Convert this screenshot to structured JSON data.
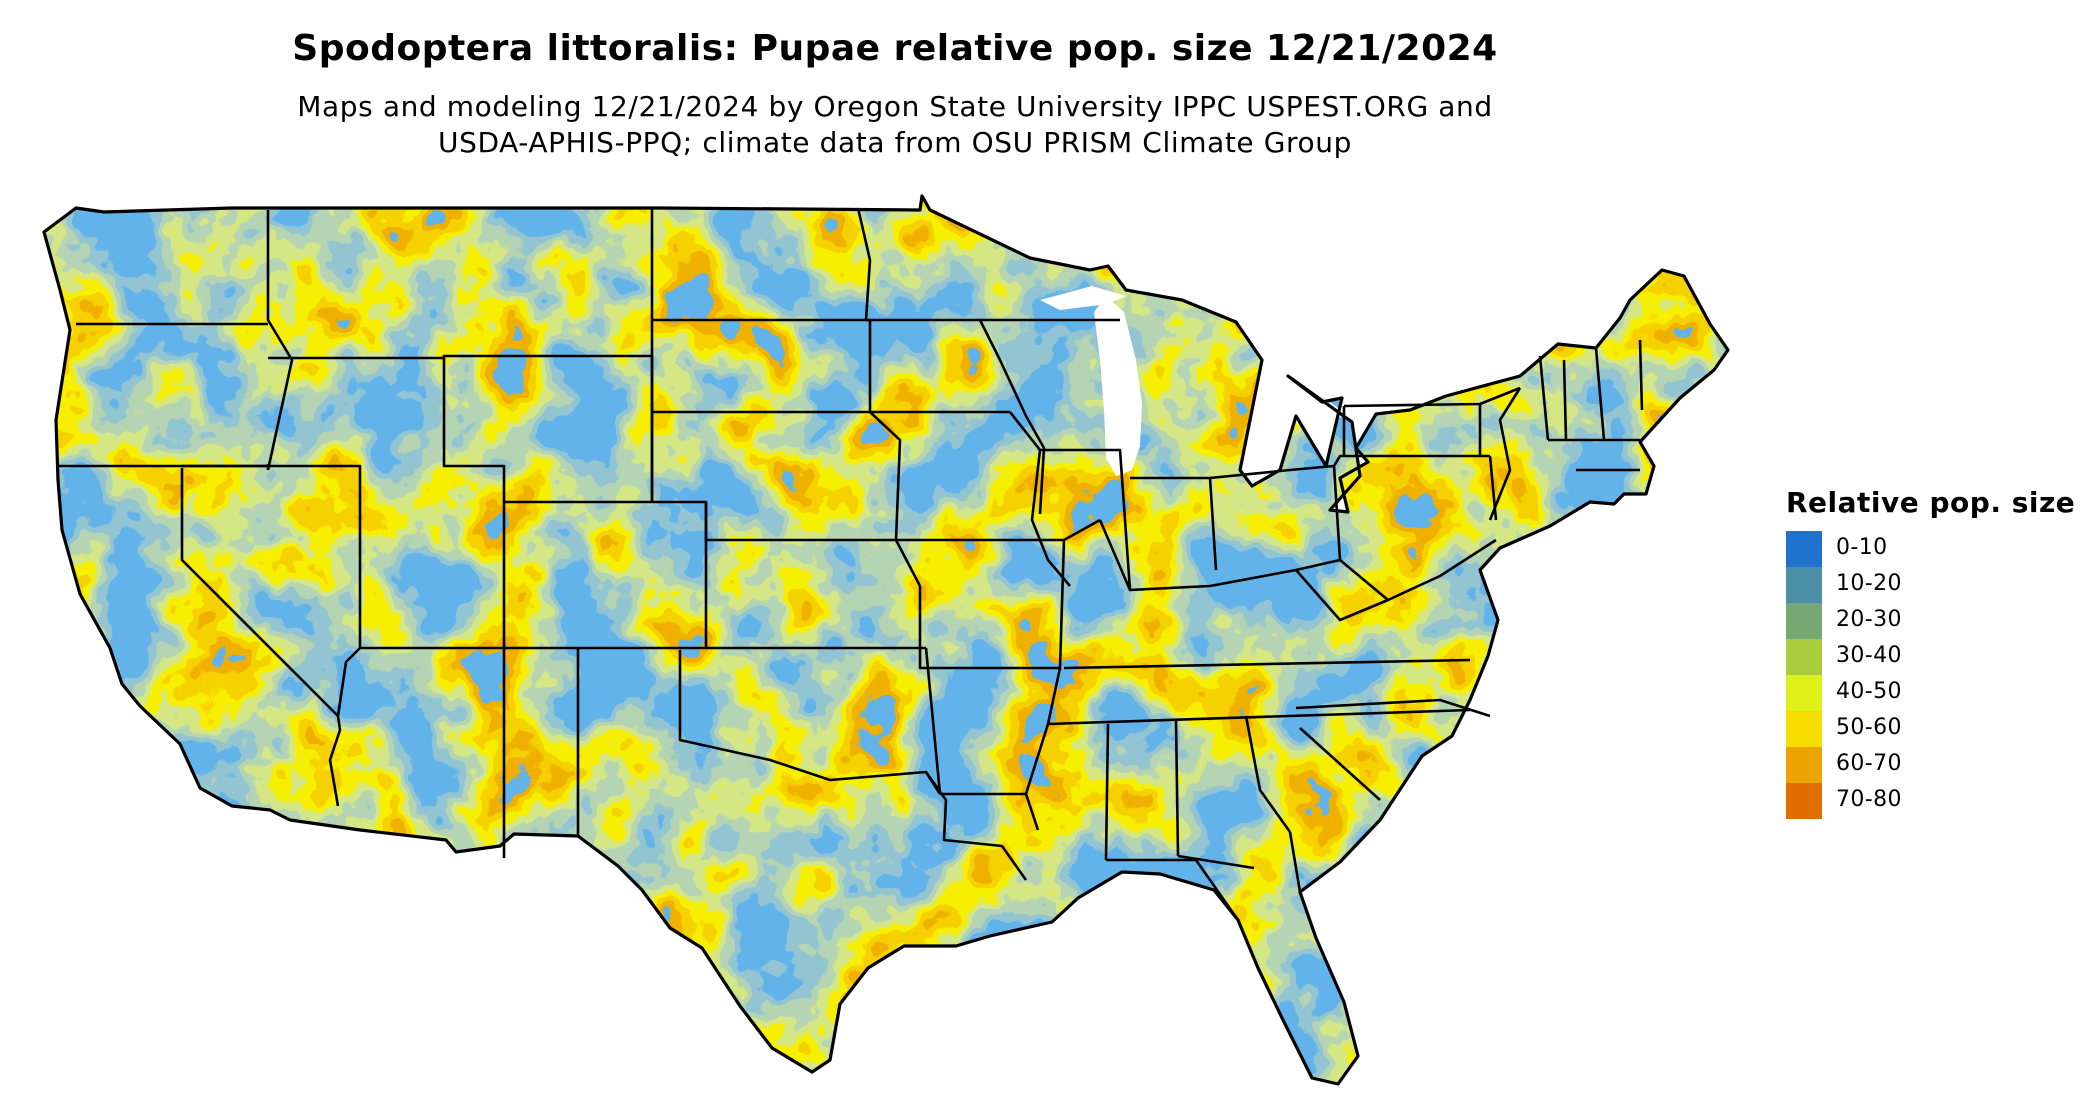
{
  "title": "Spodoptera littoralis: Pupae relative pop. size 12/21/2024",
  "subtitle_line1": "Maps and modeling 12/21/2024 by Oregon State University IPPC USPEST.ORG and",
  "subtitle_line2": "USDA-APHIS-PPQ; climate data from OSU PRISM Climate Group",
  "map": {
    "region": "contiguous-united-states",
    "boundary_color": "#000000"
  },
  "legend": {
    "title": "Relative pop. size",
    "items": [
      {
        "label": "0-10",
        "color": "#1f73cf"
      },
      {
        "label": "10-20",
        "color": "#4a8fa3"
      },
      {
        "label": "20-30",
        "color": "#76a873"
      },
      {
        "label": "30-40",
        "color": "#a8cc3c"
      },
      {
        "label": "40-50",
        "color": "#dff01a"
      },
      {
        "label": "50-60",
        "color": "#f7dc00"
      },
      {
        "label": "60-70",
        "color": "#eca400"
      },
      {
        "label": "70-80",
        "color": "#e06f00"
      }
    ]
  }
}
